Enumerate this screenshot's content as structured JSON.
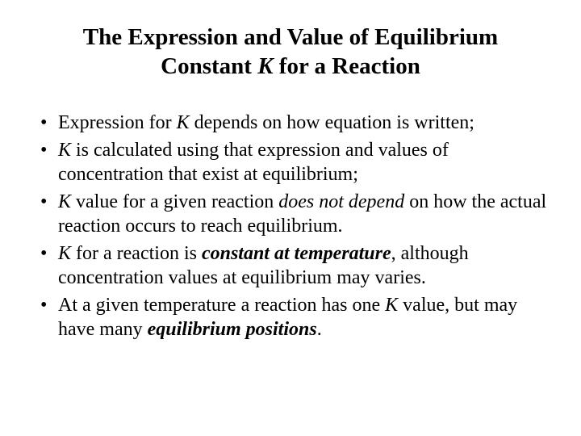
{
  "background_color": "#ffffff",
  "text_color": "#000000",
  "font_family": "Times New Roman",
  "title": {
    "pre": "The Expression and Value of Equilibrium Constant ",
    "k": "K",
    "post": " for a Reaction",
    "fontsize": 29,
    "align": "center"
  },
  "bullets": {
    "fontsize": 24,
    "items": [
      {
        "a": "Expression for ",
        "b": "K",
        "c": " depends on how equation is written;"
      },
      {
        "a": "",
        "b": "K",
        "c": " is calculated using that expression and values of concentration that exist at equilibrium;"
      },
      {
        "a": "",
        "b": "K",
        "c": " value for a given reaction ",
        "d": "does not depend",
        "e": " on how the actual reaction occurs to reach equilibrium."
      },
      {
        "a": "",
        "b": "K",
        "c": " for a reaction is ",
        "d": "constant at temperature",
        "e": ", although concentration values at equilibrium may varies."
      },
      {
        "a": "At a given temperature a reaction has one ",
        "b": "K",
        "c": " value, but may have many ",
        "d": "equilibrium positions",
        "e": "."
      }
    ]
  }
}
